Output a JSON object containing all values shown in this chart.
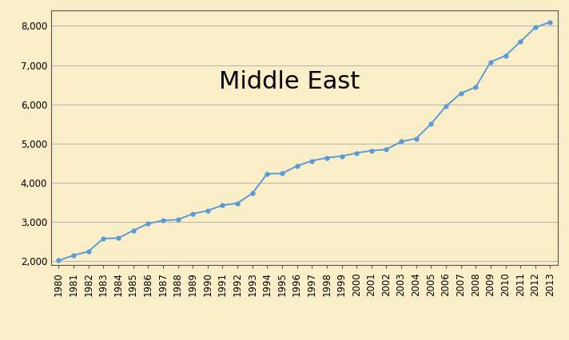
{
  "title": "Middle East",
  "background_color": "#faeec8",
  "line_color": "#5b9bd5",
  "grid_color": "#aaaaaa",
  "border_color": "#555555",
  "years": [
    1980,
    1981,
    1982,
    1983,
    1984,
    1985,
    1986,
    1987,
    1988,
    1989,
    1990,
    1991,
    1992,
    1993,
    1994,
    1995,
    1996,
    1997,
    1998,
    1999,
    2000,
    2001,
    2002,
    2003,
    2004,
    2005,
    2006,
    2007,
    2008,
    2009,
    2010,
    2011,
    2012,
    2013
  ],
  "values": [
    2020,
    2150,
    2250,
    2580,
    2590,
    2780,
    2960,
    3040,
    3060,
    3210,
    3290,
    3430,
    3480,
    3730,
    4230,
    4240,
    4430,
    4560,
    4640,
    4680,
    4760,
    4820,
    4850,
    5050,
    5130,
    5500,
    5950,
    6280,
    6440,
    7080,
    7240,
    7600,
    7960,
    8100
  ],
  "ylim": [
    1900,
    8400
  ],
  "yticks": [
    2000,
    3000,
    4000,
    5000,
    6000,
    7000,
    8000
  ],
  "title_fontsize": 22,
  "tick_fontsize": 8.5,
  "marker_size": 3.5,
  "figwidth": 7.12,
  "figheight": 4.26,
  "dpi": 100
}
